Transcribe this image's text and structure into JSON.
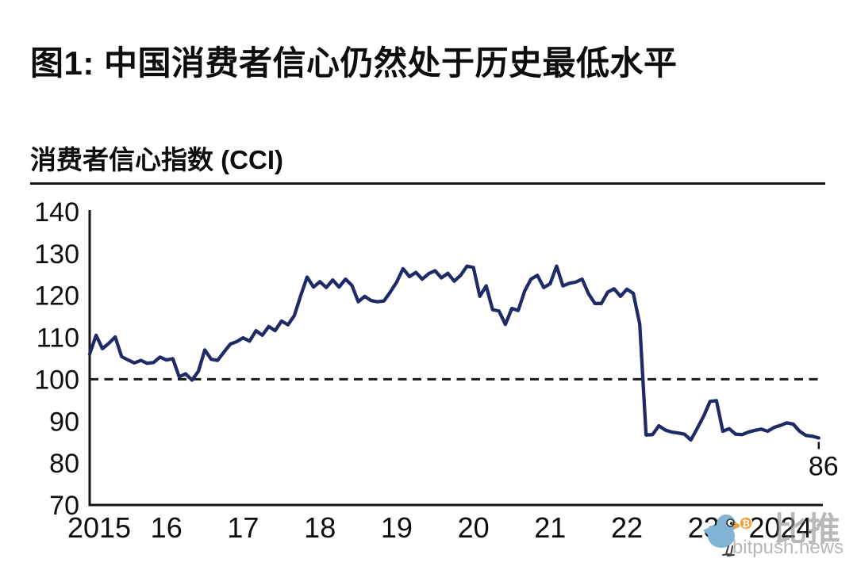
{
  "page": {
    "title": "图1: 中国消费者信心仍然处于历史最低水平",
    "subtitle": "消费者信心指数 (CCI)"
  },
  "chart_data": {
    "type": "line",
    "title": "消费者信心指数 (CCI)",
    "frequency": "monthly",
    "x_start": "2015-01",
    "x_end": "2024-07",
    "x_tick_labels": [
      "2015",
      "16",
      "17",
      "18",
      "19",
      "20",
      "21",
      "22",
      "23",
      "2024"
    ],
    "y_ticks": [
      70,
      80,
      90,
      100,
      110,
      120,
      130,
      140
    ],
    "ylim": [
      70,
      140
    ],
    "grid": false,
    "legend": "none",
    "reference_line": {
      "value": 100,
      "style": "dashed",
      "color": "#1a1a1a"
    },
    "line_color": "#1e2b66",
    "last_value_label": "86",
    "series": [
      {
        "name": "消费者信心指数 (CCI)",
        "values": [
          106.0,
          110.5,
          107.3,
          108.6,
          110.1,
          105.4,
          104.6,
          103.9,
          104.5,
          103.8,
          104.0,
          105.3,
          104.6,
          104.9,
          100.6,
          101.3,
          99.8,
          101.9,
          107.0,
          104.8,
          104.5,
          106.5,
          108.4,
          109.0,
          109.9,
          109.1,
          111.6,
          110.5,
          112.6,
          111.6,
          113.9,
          113.0,
          115.2,
          120.0,
          124.4,
          122.0,
          123.3,
          121.9,
          123.7,
          122.0,
          123.9,
          122.4,
          118.5,
          119.8,
          118.8,
          118.5,
          118.7,
          120.8,
          123.2,
          126.4,
          124.5,
          125.5,
          123.9,
          125.2,
          125.9,
          124.2,
          125.3,
          123.4,
          124.8,
          127.0,
          126.7,
          119.8,
          122.3,
          116.6,
          116.3,
          113.1,
          116.9,
          116.4,
          121.0,
          123.9,
          124.8,
          121.9,
          122.8,
          127.0,
          122.3,
          122.9,
          123.2,
          123.9,
          120.4,
          118.1,
          118.1,
          120.8,
          121.6,
          119.8,
          121.5,
          120.5,
          113.2,
          86.7,
          86.8,
          88.9,
          87.9,
          87.4,
          87.2,
          86.9,
          85.5,
          88.3,
          91.2,
          94.7,
          94.9,
          87.6,
          88.2,
          86.9,
          86.8,
          87.4,
          87.8,
          88.1,
          87.6,
          88.5,
          89.0,
          89.6,
          89.3,
          87.6,
          86.6,
          86.4,
          86.0
        ]
      }
    ]
  },
  "watermark": {
    "bird_color": "#82b4d6",
    "beak_color": "#e8a33d",
    "coin_color": "#f0a236",
    "coin_symbol": "₿",
    "cn_text": "比推",
    "cn_text_color": "#8f8f8f",
    "site_text": "bitpush.news",
    "site_text_color": "#b7b7b7"
  }
}
